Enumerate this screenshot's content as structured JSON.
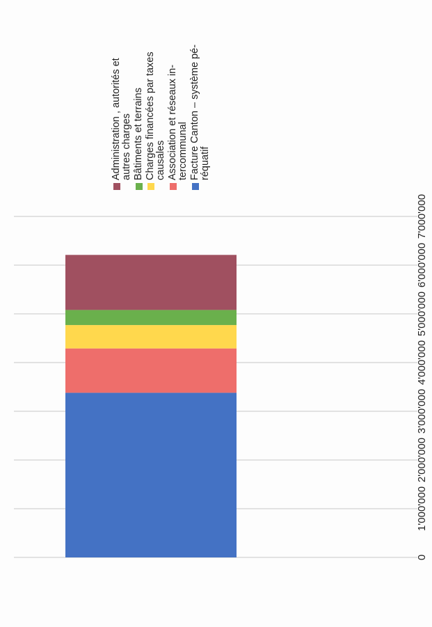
{
  "chart_data": {
    "type": "bar",
    "stacked": true,
    "categories": [
      ""
    ],
    "ylim": [
      0,
      7000000
    ],
    "yticks": [
      "0",
      "1'000'000",
      "2'000'000",
      "3'000'000",
      "4'000'000",
      "5'000'000",
      "6'000'000",
      "7'000'000"
    ],
    "grid": true,
    "legend_position": "right",
    "series": [
      {
        "name": "Facture Canton – système pé-\nréquatif",
        "values": [
          3380000
        ],
        "color": "#4472c4"
      },
      {
        "name": "Association et réseaux in-\ntercommunal",
        "values": [
          910000
        ],
        "color": "#ee6e6b"
      },
      {
        "name": "Charges financées par taxes\ncausales",
        "values": [
          480000
        ],
        "color": "#ffd84d"
      },
      {
        "name": "Bâtiments et terrains",
        "values": [
          310000
        ],
        "color": "#6ab04c"
      },
      {
        "name": "Administration , autorités  et\nautres charges",
        "values": [
          1130000
        ],
        "color": "#a05060"
      }
    ]
  }
}
